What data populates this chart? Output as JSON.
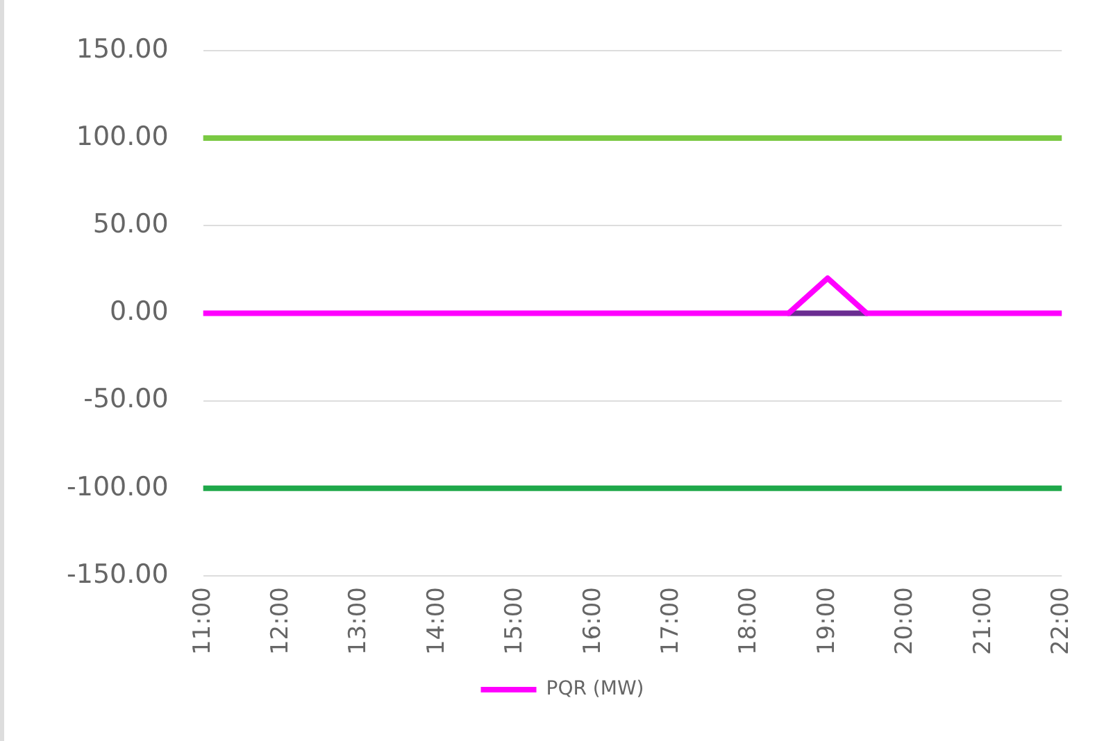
{
  "chart_data": {
    "type": "line",
    "xlim": [
      11,
      22
    ],
    "ylim": [
      -150,
      150
    ],
    "xticks": [
      {
        "value": 11,
        "label": "11:00"
      },
      {
        "value": 12,
        "label": "12:00"
      },
      {
        "value": 13,
        "label": "13:00"
      },
      {
        "value": 14,
        "label": "14:00"
      },
      {
        "value": 15,
        "label": "15:00"
      },
      {
        "value": 16,
        "label": "16:00"
      },
      {
        "value": 17,
        "label": "17:00"
      },
      {
        "value": 18,
        "label": "18:00"
      },
      {
        "value": 19,
        "label": "19:00"
      },
      {
        "value": 20,
        "label": "20:00"
      },
      {
        "value": 21,
        "label": "21:00"
      },
      {
        "value": 22,
        "label": "22:00"
      }
    ],
    "yticks": [
      {
        "value": -150,
        "label": "-150.00"
      },
      {
        "value": -100,
        "label": "-100.00"
      },
      {
        "value": -50,
        "label": "-50.00"
      },
      {
        "value": 0,
        "label": "0.00"
      },
      {
        "value": 50,
        "label": "50.00"
      },
      {
        "value": 100,
        "label": "100.00"
      },
      {
        "value": 150,
        "label": "150.00"
      }
    ],
    "series": [
      {
        "color": "#6a2c91",
        "x": [
          18.5,
          19.5
        ],
        "values": [
          0,
          0
        ]
      },
      {
        "name": "PQR (MW)",
        "color": "#ff00ff",
        "x": [
          11,
          18.5,
          19,
          19.5,
          22
        ],
        "values": [
          0,
          0,
          20,
          0,
          0
        ]
      }
    ],
    "ref_lines": [
      {
        "axis": "y",
        "value": 100,
        "color": "#7ac943"
      },
      {
        "axis": "y",
        "value": -100,
        "color": "#1fa84a"
      }
    ],
    "grid": "y",
    "legend": "bottom",
    "marker": "none",
    "line_style": "solid"
  }
}
